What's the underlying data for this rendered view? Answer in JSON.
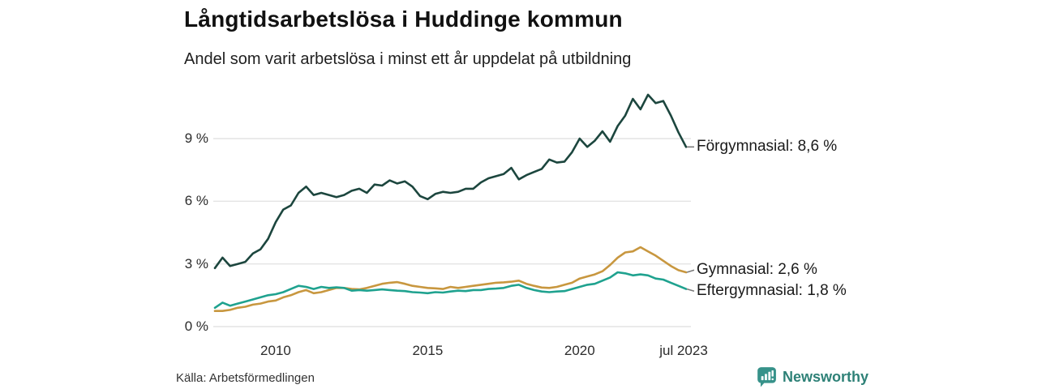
{
  "header": {
    "title": "Långtidsarbetslösa i Huddinge kommun",
    "subtitle": "Andel som varit arbetslösa i minst ett år uppdelat på utbildning"
  },
  "footer": {
    "source": "Källa: Arbetsförmedlingen",
    "logo_text": "Newsworthy"
  },
  "colors": {
    "forgymnasial": "#1c463e",
    "gymnasial": "#c8973f",
    "eftergymnasial": "#1fa28f",
    "grid": "#e4e4e4",
    "label_dash": "#7a7a7a",
    "logo_teal": "#37928a"
  },
  "chart_data": {
    "type": "line",
    "title": "Långtidsarbetslösa i Huddinge kommun",
    "subtitle": "Andel som varit arbetslösa i minst ett år uppdelat på utbildning",
    "xlabel": "",
    "ylabel": "",
    "xlim": [
      2008,
      2023.5
    ],
    "ylim": [
      0,
      11.5
    ],
    "grid": "horizontal",
    "legend_position": "right-end-labels",
    "yticks": [
      {
        "v": 0,
        "label": "0 %"
      },
      {
        "v": 3,
        "label": "3 %"
      },
      {
        "v": 6,
        "label": "6 %"
      },
      {
        "v": 9,
        "label": "9 %"
      }
    ],
    "xticks": [
      {
        "x": 2010,
        "label": "2010"
      },
      {
        "x": 2015,
        "label": "2015"
      },
      {
        "x": 2020,
        "label": "2020"
      },
      {
        "x": 2023.5,
        "label": "jul 2023"
      }
    ],
    "x": [
      2008.0,
      2008.25,
      2008.5,
      2008.75,
      2009.0,
      2009.25,
      2009.5,
      2009.75,
      2010.0,
      2010.25,
      2010.5,
      2010.75,
      2011.0,
      2011.25,
      2011.5,
      2011.75,
      2012.0,
      2012.25,
      2012.5,
      2012.75,
      2013.0,
      2013.25,
      2013.5,
      2013.75,
      2014.0,
      2014.25,
      2014.5,
      2014.75,
      2015.0,
      2015.25,
      2015.5,
      2015.75,
      2016.0,
      2016.25,
      2016.5,
      2016.75,
      2017.0,
      2017.25,
      2017.5,
      2017.75,
      2018.0,
      2018.25,
      2018.5,
      2018.75,
      2019.0,
      2019.25,
      2019.5,
      2019.75,
      2020.0,
      2020.25,
      2020.5,
      2020.75,
      2021.0,
      2021.25,
      2021.5,
      2021.75,
      2022.0,
      2022.25,
      2022.5,
      2022.75,
      2023.0,
      2023.25,
      2023.5
    ],
    "series": [
      {
        "key": "forgymnasial",
        "name": "Förgymnasial",
        "label": "Förgymnasial: 8,6 %",
        "end_value": "8,6 %",
        "color": "#1c463e",
        "values": [
          2.8,
          3.3,
          2.9,
          3.0,
          3.1,
          3.5,
          3.7,
          4.2,
          5.0,
          5.6,
          5.8,
          6.4,
          6.7,
          6.3,
          6.4,
          6.3,
          6.2,
          6.3,
          6.5,
          6.6,
          6.4,
          6.8,
          6.75,
          7.0,
          6.85,
          6.95,
          6.7,
          6.25,
          6.1,
          6.35,
          6.45,
          6.4,
          6.45,
          6.6,
          6.6,
          6.9,
          7.1,
          7.2,
          7.3,
          7.6,
          7.05,
          7.25,
          7.4,
          7.55,
          8.0,
          7.85,
          7.9,
          8.35,
          9.0,
          8.6,
          8.9,
          9.35,
          8.85,
          9.6,
          10.1,
          10.9,
          10.4,
          11.1,
          10.7,
          10.8,
          10.1,
          9.3,
          8.6
        ]
      },
      {
        "key": "gymnasial",
        "name": "Gymnasial",
        "label": "Gymnasial: 2,6 %",
        "end_value": "2,6 %",
        "color": "#c8973f",
        "values": [
          0.75,
          0.75,
          0.8,
          0.9,
          0.95,
          1.05,
          1.1,
          1.2,
          1.25,
          1.4,
          1.5,
          1.65,
          1.75,
          1.6,
          1.65,
          1.75,
          1.85,
          1.85,
          1.8,
          1.78,
          1.85,
          1.95,
          2.05,
          2.1,
          2.13,
          2.05,
          1.95,
          1.9,
          1.85,
          1.83,
          1.8,
          1.9,
          1.85,
          1.9,
          1.95,
          2.0,
          2.05,
          2.1,
          2.12,
          2.15,
          2.2,
          2.05,
          1.95,
          1.87,
          1.85,
          1.9,
          2.0,
          2.1,
          2.3,
          2.4,
          2.5,
          2.65,
          2.95,
          3.3,
          3.55,
          3.6,
          3.8,
          3.6,
          3.4,
          3.15,
          2.9,
          2.7,
          2.6
        ]
      },
      {
        "key": "eftergymnasial",
        "name": "Eftergymnasial",
        "label": "Eftergymnasial: 1,8 %",
        "end_value": "1,8 %",
        "color": "#1fa28f",
        "values": [
          0.9,
          1.15,
          1.0,
          1.1,
          1.2,
          1.3,
          1.4,
          1.5,
          1.55,
          1.65,
          1.8,
          1.95,
          1.9,
          1.8,
          1.9,
          1.85,
          1.88,
          1.85,
          1.72,
          1.75,
          1.72,
          1.75,
          1.78,
          1.75,
          1.72,
          1.7,
          1.65,
          1.63,
          1.6,
          1.65,
          1.63,
          1.68,
          1.72,
          1.7,
          1.75,
          1.75,
          1.8,
          1.82,
          1.85,
          1.95,
          2.0,
          1.85,
          1.75,
          1.68,
          1.65,
          1.68,
          1.7,
          1.8,
          1.9,
          2.0,
          2.05,
          2.2,
          2.35,
          2.6,
          2.55,
          2.45,
          2.5,
          2.45,
          2.3,
          2.25,
          2.1,
          1.95,
          1.8
        ]
      }
    ]
  }
}
